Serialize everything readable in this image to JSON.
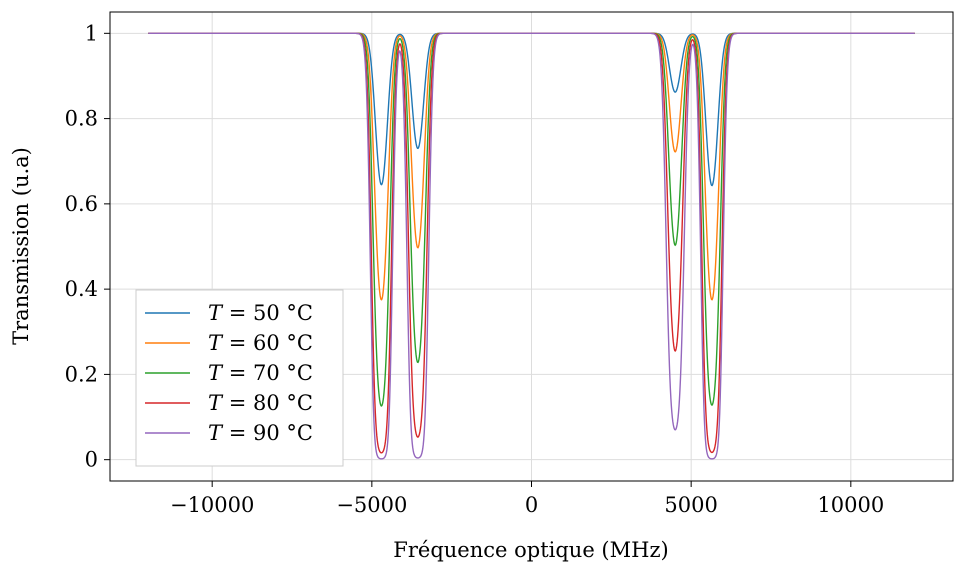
{
  "chart_data": {
    "type": "line",
    "title": "",
    "xlabel": "Fréquence optique (MHz)",
    "ylabel": "Transmission (u.a)",
    "xlim": [
      -13200,
      13200
    ],
    "ylim": [
      -0.05,
      1.05
    ],
    "x_range": [
      -12000,
      12000
    ],
    "xticks": [
      -10000,
      -5000,
      0,
      5000,
      10000
    ],
    "xtick_labels": [
      "−10000",
      "−5000",
      "0",
      "5000",
      "10000"
    ],
    "yticks": [
      0,
      0.2,
      0.4,
      0.6,
      0.8,
      1
    ],
    "ytick_labels": [
      "0",
      "0.2",
      "0.4",
      "0.6",
      "0.8",
      "1"
    ],
    "grid": true,
    "legend_position": "lower-left",
    "dip_centers": [
      -4700,
      -3560,
      4500,
      5650
    ],
    "dip_width_sigma": 170,
    "series": [
      {
        "name": "T = 50 °C",
        "label_math": "T",
        "label_rest": " = 50 °C",
        "color": "#1f77b4",
        "dip_minima": [
          0.645,
          0.73,
          0.862,
          0.643
        ]
      },
      {
        "name": "T = 60 °C",
        "label_math": "T",
        "label_rest": " = 60 °C",
        "color": "#ff7f0e",
        "dip_minima": [
          0.375,
          0.497,
          0.722,
          0.375
        ]
      },
      {
        "name": "T = 70 °C",
        "label_math": "T",
        "label_rest": " = 70 °C",
        "color": "#2ca02c",
        "dip_minima": [
          0.126,
          0.228,
          0.503,
          0.128
        ]
      },
      {
        "name": "T = 80 °C",
        "label_math": "T",
        "label_rest": " = 80 °C",
        "color": "#d62728",
        "dip_minima": [
          0.016,
          0.053,
          0.255,
          0.017
        ]
      },
      {
        "name": "T = 90 °C",
        "label_math": "T",
        "label_rest": " = 90 °C",
        "color": "#9467bd",
        "dip_minima": [
          0.002,
          0.004,
          0.07,
          0.002
        ]
      }
    ]
  }
}
